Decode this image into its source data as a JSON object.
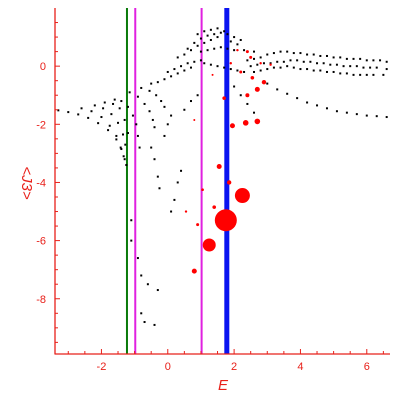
{
  "chart_data": {
    "type": "scatter",
    "xlabel": "E",
    "ylabel": "<J3>",
    "xlim": [
      -3.4,
      6.7
    ],
    "ylim": [
      -9.9,
      2.0
    ],
    "x_ticks": [
      -2,
      0,
      2,
      4,
      6
    ],
    "x_tick_labels": [
      "-2",
      "0",
      "2",
      "4",
      "6"
    ],
    "y_ticks": [
      0,
      -2,
      -4,
      -6,
      -8
    ],
    "y_tick_labels": [
      "0",
      "-2",
      "-4",
      "-6",
      "-8"
    ],
    "grid": false,
    "axis_color": "#e8201a",
    "vertical_lines": [
      {
        "x": -1.23,
        "color": "#0a7a0a"
      },
      {
        "x": -0.98,
        "color": "#e020e0"
      },
      {
        "x": 1.02,
        "color": "#e020e0"
      },
      {
        "x": 1.78,
        "color": "#0a14f0"
      }
    ],
    "black_points": [
      [
        -3.3,
        -1.52
      ],
      [
        -3.0,
        -1.58
      ],
      [
        -2.7,
        -1.66
      ],
      [
        -2.4,
        -1.78
      ],
      [
        -2.1,
        -1.96
      ],
      [
        -1.8,
        -2.2
      ],
      [
        -1.55,
        -2.52
      ],
      [
        -1.4,
        -2.85
      ],
      [
        -1.3,
        -3.2
      ],
      [
        -1.25,
        -3.4
      ],
      [
        -2.6,
        -1.45
      ],
      [
        -2.3,
        -1.55
      ],
      [
        -2.0,
        -1.75
      ],
      [
        -1.75,
        -2.05
      ],
      [
        -1.55,
        -2.4
      ],
      [
        -1.42,
        -2.8
      ],
      [
        -1.33,
        -3.1
      ],
      [
        -2.2,
        -1.35
      ],
      [
        -1.95,
        -1.45
      ],
      [
        -1.7,
        -1.65
      ],
      [
        -1.5,
        -1.95
      ],
      [
        -1.35,
        -2.35
      ],
      [
        -1.28,
        -2.7
      ],
      [
        -1.9,
        -1.25
      ],
      [
        -1.65,
        -1.3
      ],
      [
        -1.45,
        -1.45
      ],
      [
        -1.3,
        -1.85
      ],
      [
        -1.2,
        -2.3
      ],
      [
        -1.6,
        -1.15
      ],
      [
        -1.4,
        -1.2
      ],
      [
        -1.2,
        -1.4
      ],
      [
        -1.05,
        -1.7
      ],
      [
        -0.95,
        -2.0
      ],
      [
        -0.9,
        -2.4
      ],
      [
        -0.85,
        -2.8
      ],
      [
        -1.15,
        -0.9
      ],
      [
        -0.9,
        -1.05
      ],
      [
        -0.7,
        -1.3
      ],
      [
        -0.55,
        -1.55
      ],
      [
        -0.45,
        -1.85
      ],
      [
        -0.4,
        -2.1
      ],
      [
        -0.8,
        -0.75
      ],
      [
        -0.55,
        -0.85
      ],
      [
        -0.35,
        -1.0
      ],
      [
        -0.2,
        -1.2
      ],
      [
        -0.1,
        -1.4
      ],
      [
        -0.5,
        -0.6
      ],
      [
        -0.3,
        -0.55
      ],
      [
        -0.1,
        -0.45
      ],
      [
        0.1,
        -0.35
      ],
      [
        0.3,
        -0.25
      ],
      [
        0.5,
        -0.15
      ],
      [
        0.7,
        -0.05
      ],
      [
        0.0,
        -0.2
      ],
      [
        0.2,
        -0.1
      ],
      [
        0.4,
        0.0
      ],
      [
        0.6,
        0.1
      ],
      [
        0.8,
        0.15
      ],
      [
        1.0,
        0.2
      ],
      [
        0.3,
        0.3
      ],
      [
        0.5,
        0.4
      ],
      [
        0.7,
        0.55
      ],
      [
        0.9,
        0.7
      ],
      [
        1.1,
        0.8
      ],
      [
        1.3,
        0.9
      ],
      [
        1.5,
        1.0
      ],
      [
        0.6,
        0.6
      ],
      [
        0.8,
        0.8
      ],
      [
        1.0,
        0.95
      ],
      [
        1.2,
        1.05
      ],
      [
        1.4,
        1.1
      ],
      [
        1.6,
        1.15
      ],
      [
        1.8,
        1.1
      ],
      [
        2.0,
        1.0
      ],
      [
        2.2,
        0.9
      ],
      [
        0.9,
        1.1
      ],
      [
        1.1,
        1.2
      ],
      [
        1.3,
        1.25
      ],
      [
        1.5,
        1.3
      ],
      [
        1.7,
        1.2
      ],
      [
        1.9,
        0.85
      ],
      [
        2.1,
        0.75
      ],
      [
        1.0,
        0.5
      ],
      [
        1.2,
        0.55
      ],
      [
        1.4,
        0.6
      ],
      [
        1.6,
        0.65
      ],
      [
        1.8,
        0.6
      ],
      [
        2.0,
        0.55
      ],
      [
        2.3,
        0.55
      ],
      [
        2.6,
        0.5
      ],
      [
        1.1,
        0.1
      ],
      [
        1.3,
        0.05
      ],
      [
        1.5,
        0.0
      ],
      [
        1.7,
        -0.05
      ],
      [
        1.9,
        -0.1
      ],
      [
        2.1,
        -0.15
      ],
      [
        2.3,
        -0.2
      ],
      [
        2.4,
        0.2
      ],
      [
        2.6,
        0.25
      ],
      [
        2.8,
        0.3
      ],
      [
        3.0,
        0.4
      ],
      [
        3.2,
        0.45
      ],
      [
        3.4,
        0.5
      ],
      [
        3.6,
        0.5
      ],
      [
        3.8,
        0.45
      ],
      [
        4.0,
        0.45
      ],
      [
        4.2,
        0.4
      ],
      [
        4.4,
        0.4
      ],
      [
        4.6,
        0.35
      ],
      [
        4.8,
        0.35
      ],
      [
        5.0,
        0.3
      ],
      [
        5.2,
        0.3
      ],
      [
        5.4,
        0.25
      ],
      [
        5.6,
        0.25
      ],
      [
        5.8,
        0.25
      ],
      [
        6.0,
        0.2
      ],
      [
        6.2,
        0.2
      ],
      [
        6.4,
        0.2
      ],
      [
        6.6,
        0.15
      ],
      [
        2.5,
        0.0
      ],
      [
        2.7,
        0.05
      ],
      [
        2.9,
        0.1
      ],
      [
        3.1,
        0.1
      ],
      [
        3.3,
        0.15
      ],
      [
        3.5,
        0.15
      ],
      [
        3.7,
        0.2
      ],
      [
        3.9,
        0.2
      ],
      [
        4.1,
        0.15
      ],
      [
        4.3,
        0.15
      ],
      [
        4.5,
        0.1
      ],
      [
        4.7,
        0.1
      ],
      [
        4.9,
        0.05
      ],
      [
        5.1,
        0.05
      ],
      [
        5.3,
        0.0
      ],
      [
        5.5,
        0.0
      ],
      [
        5.7,
        0.0
      ],
      [
        5.9,
        -0.05
      ],
      [
        6.1,
        -0.05
      ],
      [
        6.3,
        -0.05
      ],
      [
        6.6,
        -0.1
      ],
      [
        2.6,
        -0.2
      ],
      [
        2.8,
        -0.15
      ],
      [
        3.0,
        -0.1
      ],
      [
        3.2,
        -0.05
      ],
      [
        3.4,
        -0.05
      ],
      [
        3.6,
        0.0
      ],
      [
        3.8,
        -0.05
      ],
      [
        4.0,
        -0.1
      ],
      [
        4.2,
        -0.1
      ],
      [
        4.4,
        -0.15
      ],
      [
        4.6,
        -0.15
      ],
      [
        4.8,
        -0.2
      ],
      [
        5.0,
        -0.2
      ],
      [
        5.2,
        -0.25
      ],
      [
        5.4,
        -0.25
      ],
      [
        5.6,
        -0.3
      ],
      [
        5.8,
        -0.3
      ],
      [
        6.0,
        -0.3
      ],
      [
        6.2,
        -0.3
      ],
      [
        6.5,
        -0.3
      ],
      [
        3.0,
        -0.6
      ],
      [
        3.3,
        -0.8
      ],
      [
        3.6,
        -0.95
      ],
      [
        3.9,
        -1.1
      ],
      [
        4.2,
        -1.25
      ],
      [
        4.5,
        -1.35
      ],
      [
        4.8,
        -1.45
      ],
      [
        5.1,
        -1.55
      ],
      [
        5.4,
        -1.6
      ],
      [
        5.7,
        -1.65
      ],
      [
        6.0,
        -1.7
      ],
      [
        6.3,
        -1.72
      ],
      [
        6.6,
        -1.75
      ],
      [
        2.0,
        -0.7
      ],
      [
        2.2,
        -1.0
      ],
      [
        2.4,
        -1.3
      ],
      [
        2.6,
        -1.6
      ],
      [
        -0.5,
        -2.8
      ],
      [
        -0.4,
        -3.2
      ],
      [
        -0.3,
        -3.8
      ],
      [
        -0.25,
        -4.2
      ],
      [
        -1.1,
        -5.3
      ],
      [
        -1.1,
        -6.0
      ],
      [
        -0.9,
        -6.6
      ],
      [
        -0.8,
        -7.2
      ],
      [
        -0.6,
        -7.5
      ],
      [
        -0.8,
        -8.5
      ],
      [
        -0.7,
        -8.8
      ],
      [
        -0.4,
        -8.9
      ],
      [
        -0.3,
        -7.7
      ],
      [
        0.1,
        -5.0
      ],
      [
        0.2,
        -4.6
      ],
      [
        0.3,
        -4.0
      ],
      [
        0.4,
        -3.6
      ],
      [
        -0.1,
        -2.4
      ],
      [
        0.0,
        -2.0
      ],
      [
        0.1,
        -1.7
      ],
      [
        0.5,
        -1.5
      ],
      [
        0.7,
        -1.2
      ],
      [
        0.9,
        -1.0
      ]
    ],
    "red_points": [
      {
        "x": 1.75,
        "y": -5.3,
        "r": 11
      },
      {
        "x": 2.25,
        "y": -4.45,
        "r": 7.5
      },
      {
        "x": 1.25,
        "y": -6.15,
        "r": 6.5
      },
      {
        "x": 0.8,
        "y": -7.05,
        "r": 2.5
      },
      {
        "x": 0.9,
        "y": -5.45,
        "r": 1.5
      },
      {
        "x": 0.55,
        "y": -5.0,
        "r": 1.2
      },
      {
        "x": 1.4,
        "y": -4.85,
        "r": 1.8
      },
      {
        "x": 1.05,
        "y": -4.25,
        "r": 1.3
      },
      {
        "x": 1.85,
        "y": -4.0,
        "r": 2.2
      },
      {
        "x": 1.55,
        "y": -3.45,
        "r": 2.5
      },
      {
        "x": 1.95,
        "y": -2.05,
        "r": 2.5
      },
      {
        "x": 2.35,
        "y": -1.95,
        "r": 2.8
      },
      {
        "x": 2.7,
        "y": -1.9,
        "r": 2.8
      },
      {
        "x": 0.8,
        "y": -1.85,
        "r": 1.0
      },
      {
        "x": 1.7,
        "y": -1.1,
        "r": 1.8
      },
      {
        "x": 2.4,
        "y": -1.0,
        "r": 2.0
      },
      {
        "x": 2.7,
        "y": -0.8,
        "r": 2.5
      },
      {
        "x": 2.9,
        "y": -0.55,
        "r": 2.2
      },
      {
        "x": 2.55,
        "y": -0.4,
        "r": 1.8
      },
      {
        "x": 2.2,
        "y": -0.2,
        "r": 1.5
      },
      {
        "x": 2.5,
        "y": 0.3,
        "r": 1.5
      },
      {
        "x": 2.4,
        "y": 0.5,
        "r": 1.5
      },
      {
        "x": 1.35,
        "y": -0.3,
        "r": 1.0
      },
      {
        "x": 1.9,
        "y": 0.1,
        "r": 1.2
      },
      {
        "x": 2.8,
        "y": 0.1,
        "r": 1.2
      },
      {
        "x": 3.1,
        "y": 0.05,
        "r": 1.2
      },
      {
        "x": 2.1,
        "y": 0.55,
        "r": 1.2
      }
    ]
  }
}
